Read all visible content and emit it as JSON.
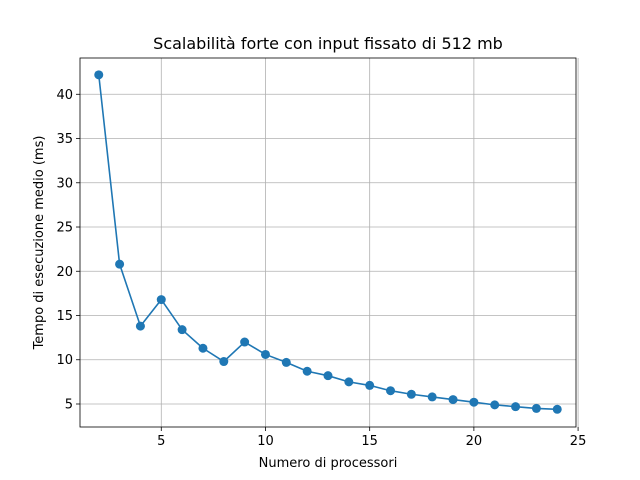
{
  "chart_data": {
    "type": "line",
    "title": "Scalabilità forte con input fissato di 512 mb",
    "xlabel": "Numero di processori",
    "ylabel": "Tempo di esecuzione medio (ms)",
    "xlim": [
      1.1,
      24.9
    ],
    "ylim": [
      2.4,
      44.1
    ],
    "xticks": [
      5,
      10,
      15,
      20,
      25
    ],
    "yticks": [
      5,
      10,
      15,
      20,
      25,
      30,
      35,
      40
    ],
    "grid": true,
    "series": [
      {
        "color": "#1f77b4",
        "marker": "circle",
        "points": [
          {
            "x": 2,
            "y": 42.2
          },
          {
            "x": 3,
            "y": 20.8
          },
          {
            "x": 4,
            "y": 13.8
          },
          {
            "x": 5,
            "y": 16.8
          },
          {
            "x": 6,
            "y": 13.4
          },
          {
            "x": 7,
            "y": 11.3
          },
          {
            "x": 8,
            "y": 9.8
          },
          {
            "x": 9,
            "y": 12.0
          },
          {
            "x": 10,
            "y": 10.6
          },
          {
            "x": 11,
            "y": 9.7
          },
          {
            "x": 12,
            "y": 8.7
          },
          {
            "x": 13,
            "y": 8.2
          },
          {
            "x": 14,
            "y": 7.5
          },
          {
            "x": 15,
            "y": 7.1
          },
          {
            "x": 16,
            "y": 6.5
          },
          {
            "x": 17,
            "y": 6.1
          },
          {
            "x": 18,
            "y": 5.8
          },
          {
            "x": 19,
            "y": 5.5
          },
          {
            "x": 20,
            "y": 5.2
          },
          {
            "x": 21,
            "y": 4.9
          },
          {
            "x": 22,
            "y": 4.7
          },
          {
            "x": 23,
            "y": 4.5
          },
          {
            "x": 24,
            "y": 4.4
          }
        ]
      }
    ]
  }
}
